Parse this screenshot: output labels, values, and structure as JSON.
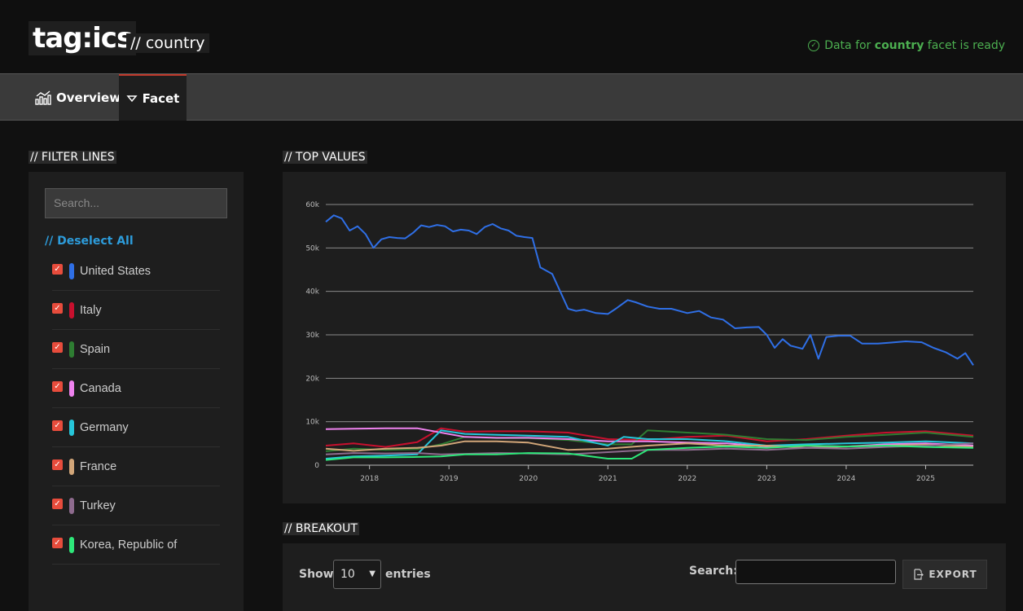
{
  "header": {
    "logo": "tag:ics",
    "subtitle": "// country",
    "status_prefix": "Data for ",
    "status_facet": "country",
    "status_suffix": " facet is ready"
  },
  "tabs": [
    {
      "label": "Overview",
      "icon": "chart-icon"
    },
    {
      "label": "Facet",
      "icon": "filter-icon"
    }
  ],
  "filter": {
    "section_label": "// FILTER LINES",
    "search_placeholder": "Search...",
    "deselect_label": "// Deselect All",
    "items": [
      {
        "label": "United States",
        "color": "#2f6fe6",
        "checked": true
      },
      {
        "label": "Italy",
        "color": "#c8102e",
        "checked": true
      },
      {
        "label": "Spain",
        "color": "#2e7d32",
        "checked": true
      },
      {
        "label": "Canada",
        "color": "#ee82ee",
        "checked": true
      },
      {
        "label": "Germany",
        "color": "#26c6da",
        "checked": true
      },
      {
        "label": "France",
        "color": "#d2a679",
        "checked": true
      },
      {
        "label": "Turkey",
        "color": "#8e6b8e",
        "checked": true
      },
      {
        "label": "Korea, Republic of",
        "color": "#2ee87a",
        "checked": true
      }
    ]
  },
  "top_values": {
    "section_label": "// TOP VALUES"
  },
  "chart_data": {
    "type": "line",
    "title": "",
    "xlabel": "",
    "ylabel": "",
    "xlim": [
      2017.45,
      2025.6
    ],
    "ylim": [
      0,
      60000
    ],
    "x_ticks": [
      "2018",
      "2019",
      "2020",
      "2021",
      "2022",
      "2023",
      "2024",
      "2025"
    ],
    "y_ticks": [
      "0",
      "10k",
      "20k",
      "30k",
      "40k",
      "50k",
      "60k"
    ],
    "grid": true,
    "legend": "none",
    "series": [
      {
        "name": "United States",
        "color": "#2f6fe6",
        "x": [
          2017.45,
          2017.55,
          2017.65,
          2017.75,
          2017.85,
          2017.95,
          2018.05,
          2018.15,
          2018.25,
          2018.35,
          2018.45,
          2018.55,
          2018.65,
          2018.75,
          2018.85,
          2018.95,
          2019.05,
          2019.15,
          2019.25,
          2019.35,
          2019.45,
          2019.55,
          2019.65,
          2019.75,
          2019.85,
          2019.95,
          2020.05,
          2020.15,
          2020.3,
          2020.4,
          2020.5,
          2020.6,
          2020.7,
          2020.85,
          2021.0,
          2021.1,
          2021.25,
          2021.35,
          2021.5,
          2021.65,
          2021.8,
          2022.0,
          2022.15,
          2022.3,
          2022.45,
          2022.6,
          2022.75,
          2022.9,
          2023.0,
          2023.1,
          2023.2,
          2023.3,
          2023.45,
          2023.55,
          2023.65,
          2023.75,
          2023.9,
          2024.05,
          2024.2,
          2024.4,
          2024.55,
          2024.75,
          2024.95,
          2025.1,
          2025.25,
          2025.4,
          2025.5,
          2025.6
        ],
        "y": [
          56000,
          57500,
          56800,
          54000,
          55000,
          53200,
          50000,
          52000,
          52500,
          52300,
          52200,
          53500,
          55200,
          54800,
          55300,
          55000,
          53800,
          54200,
          54000,
          53200,
          54800,
          55500,
          54500,
          54000,
          52800,
          52500,
          52300,
          45500,
          44000,
          40000,
          36000,
          35500,
          35800,
          35000,
          34800,
          36000,
          38000,
          37500,
          36500,
          36000,
          36000,
          35000,
          35500,
          34000,
          33500,
          31500,
          31700,
          31800,
          30000,
          27000,
          29000,
          27500,
          26800,
          30000,
          24500,
          29500,
          29800,
          29800,
          28000,
          28000,
          28200,
          28500,
          28300,
          27000,
          26000,
          24500,
          25800,
          23000
        ]
      },
      {
        "name": "Italy",
        "color": "#c8102e",
        "x": [
          2017.45,
          2017.8,
          2018.2,
          2018.6,
          2018.9,
          2019.2,
          2019.6,
          2020.0,
          2020.5,
          2021.0,
          2021.5,
          2022.0,
          2022.5,
          2023.0,
          2023.5,
          2024.0,
          2024.5,
          2025.0,
          2025.6
        ],
        "y": [
          4500,
          5000,
          4200,
          5300,
          8500,
          7700,
          7800,
          7800,
          7500,
          6000,
          5800,
          6500,
          6800,
          5500,
          6000,
          6800,
          7500,
          7800,
          6800
        ]
      },
      {
        "name": "Spain",
        "color": "#2e7d32",
        "x": [
          2017.45,
          2017.8,
          2018.2,
          2018.6,
          2018.9,
          2019.2,
          2019.6,
          2020.0,
          2020.5,
          2021.0,
          2021.3,
          2021.5,
          2022.0,
          2022.5,
          2023.0,
          2023.5,
          2024.0,
          2024.5,
          2025.0,
          2025.6
        ],
        "y": [
          3200,
          3800,
          3500,
          3700,
          4800,
          6500,
          6200,
          6200,
          5800,
          4800,
          4800,
          8000,
          7500,
          7000,
          6000,
          5800,
          6500,
          7000,
          7500,
          6500
        ]
      },
      {
        "name": "Canada",
        "color": "#ee82ee",
        "x": [
          2017.45,
          2017.8,
          2018.2,
          2018.6,
          2018.9,
          2019.2,
          2019.6,
          2020.0,
          2020.5,
          2021.0,
          2021.5,
          2022.0,
          2022.5,
          2023.0,
          2023.5,
          2024.0,
          2024.5,
          2025.0,
          2025.6
        ],
        "y": [
          8300,
          8400,
          8500,
          8500,
          7500,
          6500,
          6300,
          6300,
          6000,
          5500,
          5500,
          5200,
          5000,
          4300,
          4500,
          4300,
          4800,
          5000,
          4500
        ]
      },
      {
        "name": "Germany",
        "color": "#26c6da",
        "x": [
          2017.45,
          2017.8,
          2018.2,
          2018.6,
          2018.9,
          2019.2,
          2019.6,
          2020.0,
          2020.5,
          2021.0,
          2021.2,
          2021.5,
          2022.0,
          2022.5,
          2023.0,
          2023.5,
          2024.0,
          2024.5,
          2025.0,
          2025.6
        ],
        "y": [
          1500,
          2000,
          2200,
          2500,
          8000,
          7200,
          7000,
          6800,
          6500,
          4500,
          6500,
          6000,
          6000,
          5500,
          4500,
          4800,
          5000,
          5200,
          5500,
          5000
        ]
      },
      {
        "name": "France",
        "color": "#d2a679",
        "x": [
          2017.45,
          2017.8,
          2018.2,
          2018.6,
          2018.9,
          2019.2,
          2019.6,
          2020.0,
          2020.5,
          2021.0,
          2021.5,
          2022.0,
          2022.5,
          2023.0,
          2023.5,
          2024.0,
          2024.5,
          2025.0,
          2025.6
        ],
        "y": [
          3800,
          3300,
          3800,
          4000,
          4500,
          5500,
          5500,
          5200,
          3500,
          3800,
          4500,
          5000,
          4500,
          4500,
          4000,
          4300,
          4500,
          4700,
          4200
        ]
      },
      {
        "name": "Turkey",
        "color": "#8e6b8e",
        "x": [
          2017.45,
          2017.8,
          2018.2,
          2018.6,
          2018.9,
          2019.2,
          2019.6,
          2020.0,
          2020.5,
          2021.0,
          2021.5,
          2022.0,
          2022.5,
          2023.0,
          2023.5,
          2024.0,
          2024.5,
          2025.0,
          2025.6
        ],
        "y": [
          2500,
          2800,
          2700,
          2800,
          2500,
          2600,
          2800,
          2700,
          2500,
          3000,
          3500,
          3500,
          3800,
          3500,
          4000,
          3800,
          4200,
          4500,
          5000
        ]
      },
      {
        "name": "Korea, Republic of",
        "color": "#2ee87a",
        "x": [
          2017.45,
          2017.8,
          2018.2,
          2018.6,
          2018.9,
          2019.2,
          2019.6,
          2020.0,
          2020.5,
          2021.0,
          2021.3,
          2021.5,
          2022.0,
          2022.5,
          2023.0,
          2023.5,
          2024.0,
          2024.5,
          2025.0,
          2025.6
        ],
        "y": [
          1200,
          1800,
          1800,
          1900,
          2000,
          2500,
          2500,
          2800,
          2700,
          1500,
          1500,
          3500,
          4000,
          4300,
          4000,
          4500,
          4300,
          4500,
          4200,
          4000
        ]
      }
    ]
  },
  "breakout": {
    "section_label": "// BREAKOUT",
    "show_label": "Show",
    "entries_value": "10",
    "entries_label": "entries",
    "search_label": "Search:",
    "export_label": "EXPORT"
  }
}
